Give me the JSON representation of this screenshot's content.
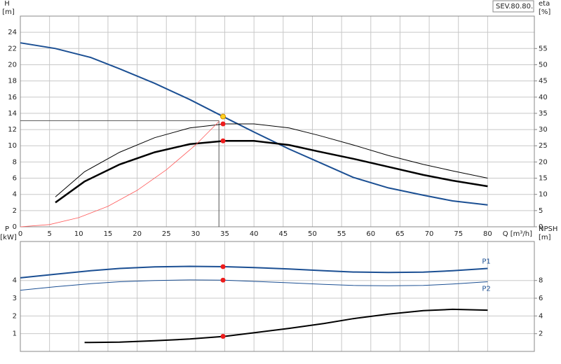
{
  "chart_data": [
    {
      "type": "line",
      "model_label": "SEV.80.80.",
      "ylabel": "H",
      "yunit": "[m]",
      "y2label": "eta",
      "y2unit": "[%]",
      "xlabel": "Q [m³/h]",
      "xlim": [
        0,
        88
      ],
      "xticks": [
        0,
        5,
        10,
        15,
        20,
        25,
        30,
        35,
        40,
        45,
        50,
        55,
        60,
        65,
        70,
        75,
        80
      ],
      "ylim": [
        0,
        26
      ],
      "yticks": [
        0,
        2,
        4,
        6,
        8,
        10,
        12,
        14,
        16,
        18,
        20,
        22,
        24
      ],
      "y2lim": [
        0,
        65
      ],
      "y2ticks": [
        0,
        5,
        10,
        15,
        20,
        25,
        30,
        35,
        40,
        45,
        50,
        55
      ],
      "grid": true,
      "series": [
        {
          "color": "#1b4f93",
          "width": 2,
          "axis": "y",
          "x": [
            0,
            6,
            12,
            17,
            23,
            29,
            35,
            40,
            46,
            52,
            57,
            63,
            69,
            74,
            80
          ],
          "values": [
            22.7,
            22.0,
            20.9,
            19.5,
            17.7,
            15.7,
            13.5,
            11.7,
            9.6,
            7.7,
            6.1,
            4.8,
            3.9,
            3.2,
            2.7
          ]
        },
        {
          "color": "#000000",
          "width": 1,
          "axis": "y2",
          "x": [
            6,
            11,
            17,
            23,
            29,
            35,
            40,
            46,
            51,
            57,
            63,
            69,
            74,
            80
          ],
          "values": [
            9.25,
            17,
            23,
            27.5,
            30.5,
            31.75,
            31.75,
            30.5,
            28.25,
            25.25,
            22,
            19.25,
            17.25,
            15
          ]
        },
        {
          "color": "#000000",
          "width": 2.5,
          "axis": "y2",
          "x": [
            6,
            11,
            17,
            23,
            29,
            35,
            40,
            46,
            51,
            57,
            63,
            69,
            74,
            80
          ],
          "values": [
            7.5,
            14,
            19.25,
            23,
            25.5,
            26.5,
            26.5,
            25.25,
            23.25,
            21,
            18.5,
            16,
            14.25,
            12.5
          ]
        },
        {
          "color": "#ff5a5a",
          "width": 0.8,
          "axis": "y",
          "x": [
            0,
            5,
            10,
            15,
            20,
            25,
            30,
            34
          ],
          "values": [
            0,
            0.28,
            1.13,
            2.53,
            4.5,
            7.03,
            10.1,
            13
          ]
        }
      ],
      "reference_lines": {
        "x": 34,
        "y": 13.1
      },
      "markers": [
        {
          "x": 34.7,
          "y": 13.6,
          "axis": "y",
          "color": "#ffd21f"
        },
        {
          "x": 34.7,
          "y": 31.75,
          "axis": "y2",
          "color": "#ee1c1c"
        },
        {
          "x": 34.7,
          "y": 26.5,
          "axis": "y2",
          "color": "#ee1c1c"
        }
      ]
    },
    {
      "type": "line",
      "ylabel": "P",
      "yunit": "[kW]",
      "y2label": "NPSH",
      "y2unit": "[m]",
      "ylim": [
        0,
        6.2
      ],
      "yticks": [
        1,
        2,
        3,
        4
      ],
      "y2lim": [
        0,
        12.4
      ],
      "y2ticks": [
        2,
        4,
        6,
        8
      ],
      "grid": true,
      "series": [
        {
          "name": "P1",
          "color": "#1b4f93",
          "width": 2,
          "axis": "y",
          "x": [
            0,
            6,
            12,
            17,
            23,
            29,
            35,
            40,
            46,
            52,
            57,
            63,
            69,
            74,
            80
          ],
          "values": [
            4.15,
            4.35,
            4.55,
            4.68,
            4.77,
            4.8,
            4.78,
            4.73,
            4.65,
            4.55,
            4.48,
            4.45,
            4.47,
            4.55,
            4.68
          ]
        },
        {
          "name": "P2",
          "color": "#1b4f93",
          "width": 1,
          "axis": "y",
          "x": [
            0,
            6,
            12,
            17,
            23,
            29,
            35,
            40,
            46,
            52,
            57,
            63,
            69,
            74,
            80
          ],
          "values": [
            3.45,
            3.65,
            3.82,
            3.93,
            4.0,
            4.03,
            4.02,
            3.95,
            3.87,
            3.78,
            3.72,
            3.7,
            3.72,
            3.8,
            3.93
          ]
        },
        {
          "color": "#000000",
          "width": 2,
          "axis": "y2",
          "x": [
            11,
            17,
            23,
            29,
            35,
            40,
            46,
            52,
            57,
            63,
            69,
            74,
            80
          ],
          "values": [
            1.0,
            1.05,
            1.2,
            1.4,
            1.7,
            2.1,
            2.6,
            3.15,
            3.7,
            4.2,
            4.6,
            4.75,
            4.65
          ]
        }
      ],
      "markers": [
        {
          "x": 34.7,
          "y": 4.78,
          "axis": "y",
          "color": "#ee1c1c"
        },
        {
          "x": 34.7,
          "y": 4.02,
          "axis": "y",
          "color": "#ee1c1c"
        },
        {
          "x": 34.7,
          "y": 1.7,
          "axis": "y2",
          "color": "#ee1c1c"
        }
      ]
    }
  ]
}
